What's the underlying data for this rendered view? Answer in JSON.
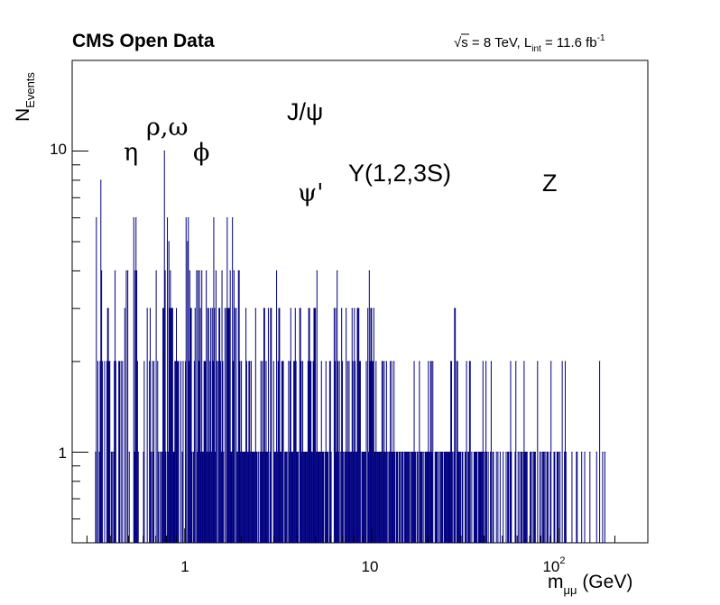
{
  "header": {
    "title": "CMS Open Data",
    "energy_label": "√s = 8 TeV, L",
    "lumi_subscript": "int",
    "lumi_value": " = 11.6 fb",
    "lumi_superscript": "-1"
  },
  "axes": {
    "ylabel_main": "N",
    "ylabel_sub": "Events",
    "xlabel_main": "m",
    "xlabel_sub": "μμ",
    "xlabel_unit": " (GeV)",
    "xtick_1": "1",
    "xtick_10": "10",
    "xtick_100_base": "10",
    "xtick_100_exp": "2",
    "ytick_1": "1",
    "ytick_10": "10"
  },
  "resonances": {
    "eta": "η",
    "rho_omega": "ρ,ω",
    "phi": "ϕ",
    "jpsi": "J/ψ",
    "psi_prime": "ψ'",
    "upsilon": "Υ(1,2,3S)",
    "z": "Z"
  },
  "colors": {
    "histogram": "#000080",
    "frame": "#000000",
    "background": "#ffffff"
  },
  "chart_data": {
    "type": "histogram",
    "x_scale": "log",
    "y_scale": "log",
    "xlim": [
      0.25,
      300
    ],
    "ylim": [
      0.5,
      20
    ],
    "grid": false,
    "legend": "none",
    "entries_per_bin_levels": [
      1,
      2,
      3,
      4,
      5,
      6,
      8,
      10
    ],
    "peaks": [
      {
        "label": "η",
        "x": 0.55,
        "y": 6
      },
      {
        "label": "ρ,ω",
        "x": 0.78,
        "y": 10
      },
      {
        "label": "ϕ",
        "x": 1.02,
        "y": 6
      },
      {
        "label": "J/ψ",
        "x": 3.1,
        "y": 4
      },
      {
        "label": "ψ'",
        "x": 3.7,
        "y": 3
      },
      {
        "label": "Υ(1,2,3S)",
        "x": 9.5,
        "y": 3
      },
      {
        "label": "Z",
        "x": 91,
        "y": 2
      }
    ],
    "max_mass": 180
  }
}
